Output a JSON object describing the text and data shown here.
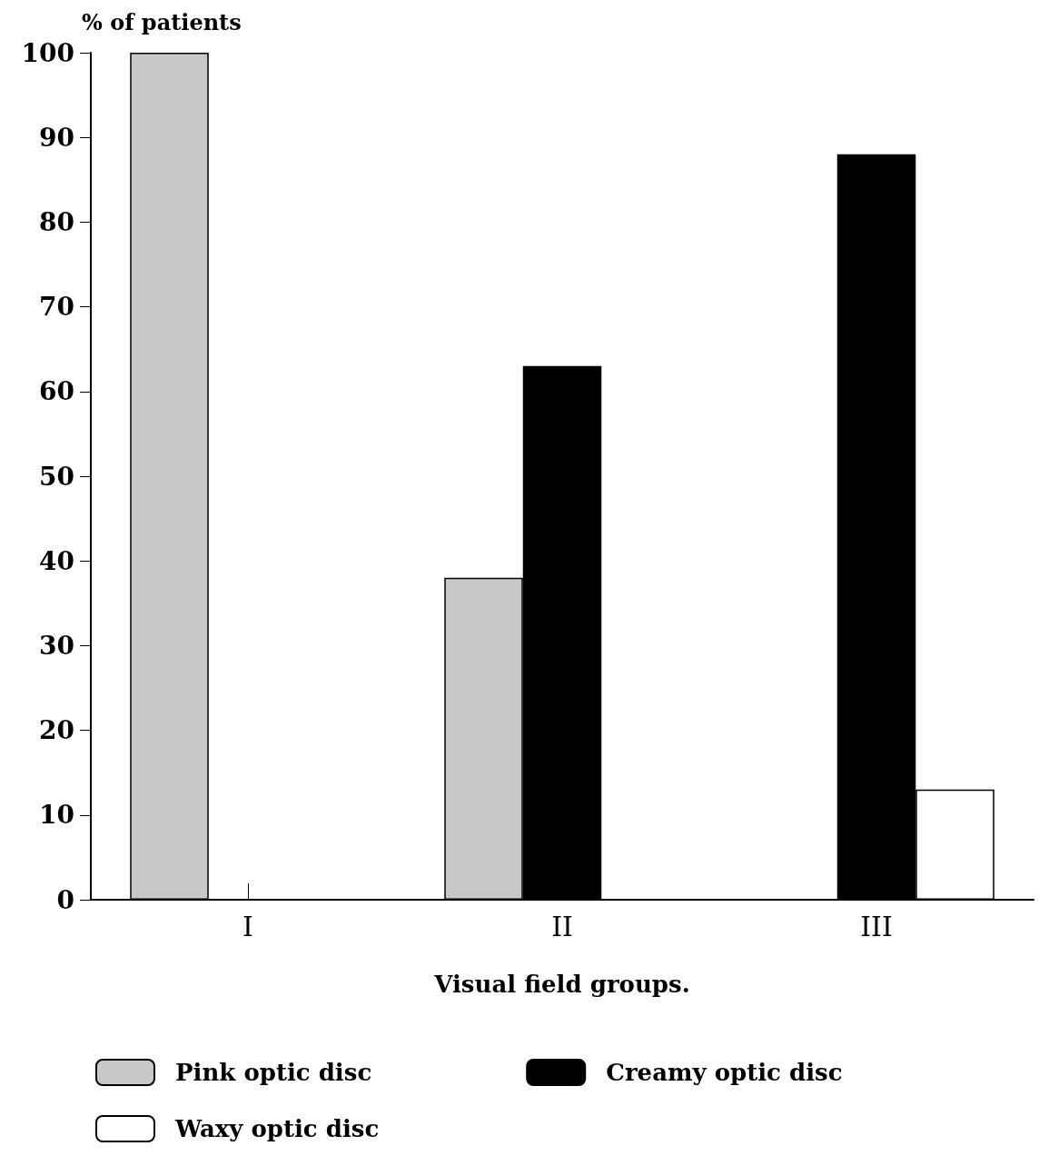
{
  "chart_data": {
    "type": "bar",
    "xlabel": "Visual field groups.",
    "ylabel": "% of patients",
    "categories": [
      "I",
      "II",
      "III"
    ],
    "series": [
      {
        "name": "Pink optic disc",
        "color": "#c8c8c8",
        "values": [
          100,
          38,
          0
        ]
      },
      {
        "name": "Creamy optic disc",
        "color": "#000000",
        "values": [
          0,
          63,
          88
        ]
      },
      {
        "name": "Waxy optic disc",
        "color": "#ffffff",
        "values": [
          0,
          0,
          13
        ]
      }
    ],
    "ylim": [
      0,
      100
    ],
    "yticks": [
      0,
      10,
      20,
      30,
      40,
      50,
      60,
      70,
      80,
      90,
      100
    ],
    "legend": "bottom",
    "grid": false
  }
}
